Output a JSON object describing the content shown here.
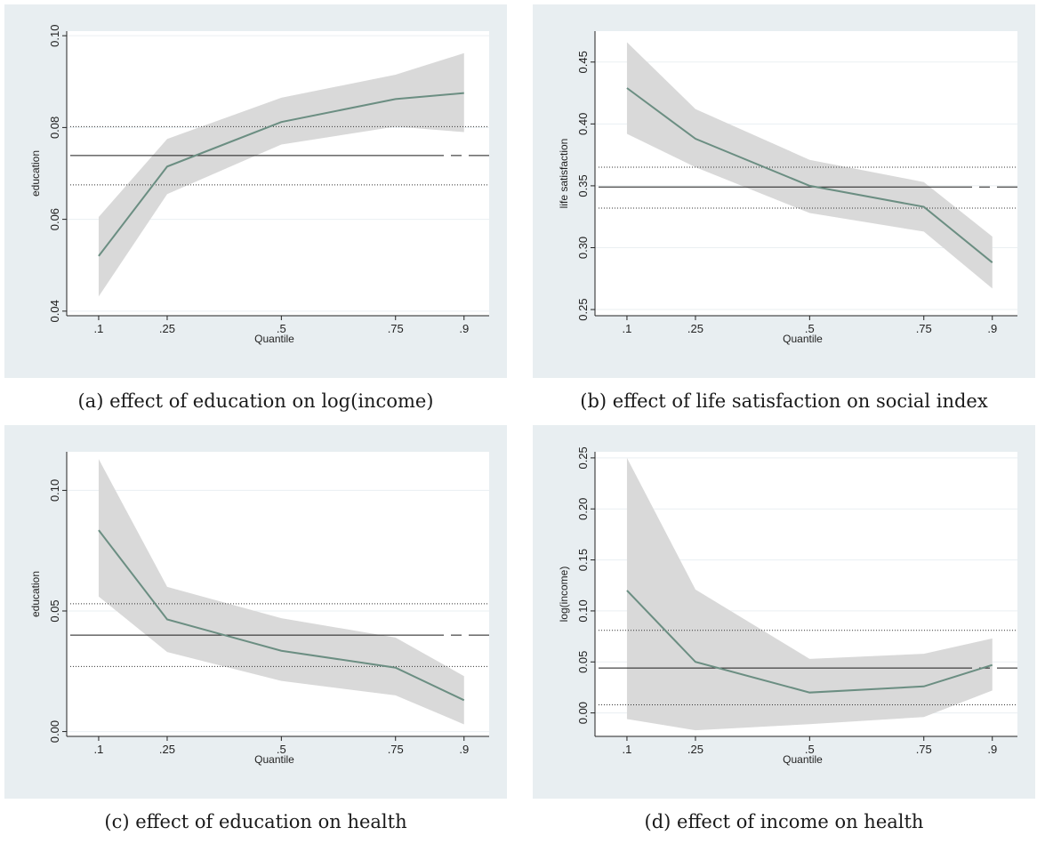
{
  "chart_data": [
    {
      "type": "line",
      "caption": "(a) effect of education on log(income)",
      "xlabel": "Quantile",
      "ylabel": "education",
      "x": [
        0.1,
        0.25,
        0.5,
        0.75,
        0.9
      ],
      "xtick_labels": [
        ".1",
        ".25",
        ".5",
        ".75",
        ".9"
      ],
      "xlim": [
        0.03,
        0.955
      ],
      "ylim": [
        0.039,
        0.101
      ],
      "yticks": [
        0.04,
        0.06,
        0.08,
        0.1
      ],
      "ytick_labels": [
        "0.04",
        "0.06",
        "0.08",
        "0.10"
      ],
      "estimate": [
        0.052,
        0.0715,
        0.0812,
        0.0862,
        0.0875
      ],
      "ci_lower": [
        0.0432,
        0.0655,
        0.0763,
        0.0802,
        0.079
      ],
      "ci_upper": [
        0.0605,
        0.0775,
        0.0865,
        0.0915,
        0.0962
      ],
      "ols": 0.0739,
      "ols_lower": 0.0675,
      "ols_upper": 0.0802,
      "grid": true,
      "colors": {
        "line": "#6b8e82",
        "band": "#d9d9d9",
        "panel": "#e8eef1"
      }
    },
    {
      "type": "line",
      "caption": "(b) effect of life satisfaction on social index",
      "xlabel": "Quantile",
      "ylabel": "life satisfaction",
      "x": [
        0.1,
        0.25,
        0.5,
        0.75,
        0.9
      ],
      "xtick_labels": [
        ".1",
        ".25",
        ".5",
        ".75",
        ".9"
      ],
      "xlim": [
        0.03,
        0.955
      ],
      "ylim": [
        0.245,
        0.475
      ],
      "yticks": [
        0.25,
        0.3,
        0.35,
        0.4,
        0.45
      ],
      "ytick_labels": [
        "0.25",
        "0.30",
        "0.35",
        "0.40",
        "0.45"
      ],
      "estimate": [
        0.429,
        0.388,
        0.35,
        0.333,
        0.288
      ],
      "ci_lower": [
        0.392,
        0.365,
        0.328,
        0.313,
        0.267
      ],
      "ci_upper": [
        0.466,
        0.412,
        0.371,
        0.353,
        0.309
      ],
      "ols": 0.349,
      "ols_lower": 0.332,
      "ols_upper": 0.365,
      "grid": true,
      "colors": {
        "line": "#6b8e82",
        "band": "#d9d9d9",
        "panel": "#e8eef1"
      }
    },
    {
      "type": "line",
      "caption": "(c) effect of education on health",
      "xlabel": "Quantile",
      "ylabel": "education",
      "x": [
        0.1,
        0.25,
        0.5,
        0.75,
        0.9
      ],
      "xtick_labels": [
        ".1",
        ".25",
        ".5",
        ".75",
        ".9"
      ],
      "xlim": [
        0.03,
        0.955
      ],
      "ylim": [
        -0.002,
        0.116
      ],
      "yticks": [
        0.0,
        0.05,
        0.1
      ],
      "ytick_labels": [
        "0.00",
        "0.05",
        "0.10"
      ],
      "estimate": [
        0.0835,
        0.0465,
        0.0335,
        0.0265,
        0.013
      ],
      "ci_lower": [
        0.056,
        0.033,
        0.021,
        0.015,
        0.003
      ],
      "ci_upper": [
        0.113,
        0.06,
        0.047,
        0.039,
        0.023
      ],
      "ols": 0.04,
      "ols_lower": 0.027,
      "ols_upper": 0.053,
      "grid": true,
      "colors": {
        "line": "#6b8e82",
        "band": "#d9d9d9",
        "panel": "#e8eef1"
      }
    },
    {
      "type": "line",
      "caption": "(d) effect of income on health",
      "xlabel": "Quantile",
      "ylabel": "log(income)",
      "x": [
        0.1,
        0.25,
        0.5,
        0.75,
        0.9
      ],
      "xtick_labels": [
        ".1",
        ".25",
        ".5",
        ".75",
        ".9"
      ],
      "xlim": [
        0.03,
        0.955
      ],
      "ylim": [
        -0.023,
        0.256
      ],
      "yticks": [
        0.0,
        0.05,
        0.1,
        0.15,
        0.2,
        0.25
      ],
      "ytick_labels": [
        "0.00",
        "0.05",
        "0.10",
        "0.15",
        "0.20",
        "0.25"
      ],
      "estimate": [
        0.12,
        0.05,
        0.02,
        0.026,
        0.047
      ],
      "ci_lower": [
        -0.006,
        -0.017,
        -0.011,
        -0.004,
        0.022
      ],
      "ci_upper": [
        0.25,
        0.121,
        0.053,
        0.058,
        0.073
      ],
      "ols": 0.044,
      "ols_lower": 0.008,
      "ols_upper": 0.081,
      "grid": true,
      "colors": {
        "line": "#6b8e82",
        "band": "#d9d9d9",
        "panel": "#e8eef1"
      }
    }
  ]
}
